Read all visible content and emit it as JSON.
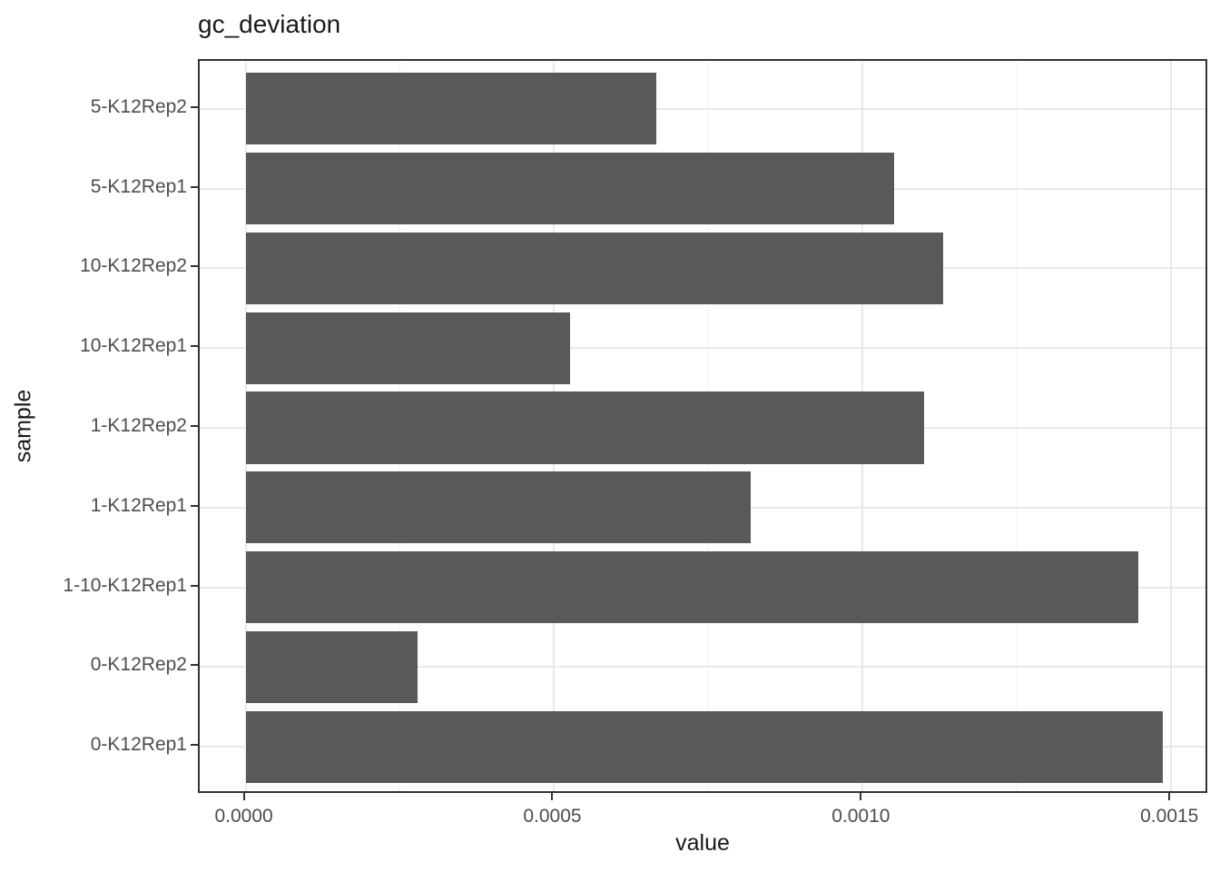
{
  "chart_data": {
    "type": "bar",
    "orientation": "horizontal",
    "title": "gc_deviation",
    "xlabel": "value",
    "ylabel": "sample",
    "categories_top_to_bottom": [
      "5-K12Rep2",
      "5-K12Rep1",
      "10-K12Rep2",
      "10-K12Rep1",
      "1-K12Rep2",
      "1-K12Rep1",
      "1-10-K12Rep1",
      "0-K12Rep2",
      "0-K12Rep1"
    ],
    "values": [
      0.000665,
      0.001051,
      0.001131,
      0.000526,
      0.0011,
      0.000819,
      0.001446,
      0.000278,
      0.001487
    ],
    "x_ticks": [
      0,
      0.0005,
      0.001,
      0.0015
    ],
    "x_tick_labels": [
      "0.0000",
      "0.0005",
      "0.0010",
      "0.0015"
    ],
    "x_minor_ticks": [
      0.00025,
      0.00075,
      0.00125
    ],
    "xlim": [
      -7.44e-05,
      0.0015614
    ],
    "grid": true,
    "legend": false,
    "colors": {
      "bar_fill": "#595959",
      "panel_border": "#333333",
      "grid_major": "#E9E9E9",
      "grid_minor": "#F1F1F1",
      "tick_mark": "#333333",
      "axis_text": "#4D4D4D",
      "title_text": "#1A1A1A"
    }
  }
}
